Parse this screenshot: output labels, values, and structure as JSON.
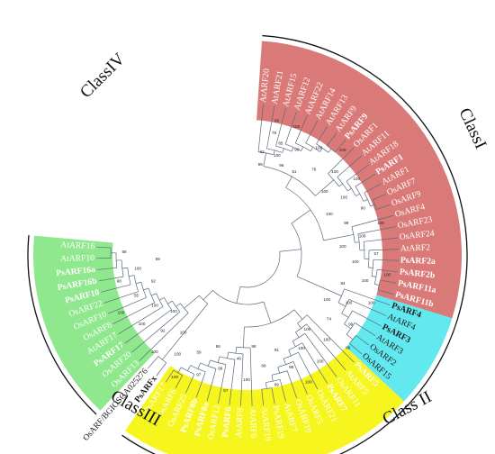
{
  "figure": {
    "center": "275,283",
    "classes": [
      {
        "name": "ClassI",
        "label": "ClassI",
        "color": "#d97a78",
        "text_color": "#ffffff"
      },
      {
        "name": "ClassII",
        "label": "Class II",
        "color": "#62e8ef",
        "text_color": "#1a1a1a"
      },
      {
        "name": "ClassIII",
        "label": "ClassIII",
        "color": "#f6f51e",
        "text_color": "#ffffff"
      },
      {
        "name": "ClassIV",
        "label": "ClassIV",
        "color": "#8fe88d",
        "text_color": "#ffffff"
      }
    ],
    "leaves": [
      {
        "label": "AtARF20",
        "cls": "ClassI",
        "bold": false
      },
      {
        "label": "AtARF21",
        "cls": "ClassI",
        "bold": false
      },
      {
        "label": "AtARF15",
        "cls": "ClassI",
        "bold": false
      },
      {
        "label": "AtARF12",
        "cls": "ClassI",
        "bold": false
      },
      {
        "label": "AtARF22",
        "cls": "ClassI",
        "bold": false
      },
      {
        "label": "AtARF14",
        "cls": "ClassI",
        "bold": false
      },
      {
        "label": "AtARF13",
        "cls": "ClassI",
        "bold": false
      },
      {
        "label": "AtARF9",
        "cls": "ClassI",
        "bold": false
      },
      {
        "label": "PsARF9",
        "cls": "ClassI",
        "bold": true
      },
      {
        "label": "OsARF1",
        "cls": "ClassI",
        "bold": false
      },
      {
        "label": "AtARF11",
        "cls": "ClassI",
        "bold": false
      },
      {
        "label": "AtARF18",
        "cls": "ClassI",
        "bold": false
      },
      {
        "label": "PsARF1",
        "cls": "ClassI",
        "bold": true
      },
      {
        "label": "AtARF1",
        "cls": "ClassI",
        "bold": false
      },
      {
        "label": "OsARF7",
        "cls": "ClassI",
        "bold": false
      },
      {
        "label": "OsARF9",
        "cls": "ClassI",
        "bold": false
      },
      {
        "label": "OsARF4",
        "cls": "ClassI",
        "bold": false
      },
      {
        "label": "OsARF23",
        "cls": "ClassI",
        "bold": false
      },
      {
        "label": "OsARF24",
        "cls": "ClassI",
        "bold": false
      },
      {
        "label": "AtARF2",
        "cls": "ClassI",
        "bold": false
      },
      {
        "label": "PsARF2a",
        "cls": "ClassI",
        "bold": true
      },
      {
        "label": "PsARF2b",
        "cls": "ClassI",
        "bold": true
      },
      {
        "label": "PsARF11a",
        "cls": "ClassI",
        "bold": true
      },
      {
        "label": "PsARF11b",
        "cls": "ClassI",
        "bold": true
      },
      {
        "label": "PsARF4",
        "cls": "ClassII",
        "bold": true
      },
      {
        "label": "AtARF4",
        "cls": "ClassII",
        "bold": false
      },
      {
        "label": "PsARF3",
        "cls": "ClassII",
        "bold": true
      },
      {
        "label": "AtARF3",
        "cls": "ClassII",
        "bold": false
      },
      {
        "label": "OsARF2",
        "cls": "ClassII",
        "bold": false
      },
      {
        "label": "OsARF15",
        "cls": "ClassII",
        "bold": false
      },
      {
        "label": "PsARF5",
        "cls": "ClassIII",
        "bold": true
      },
      {
        "label": "AtARF5",
        "cls": "ClassIII",
        "bold": false
      },
      {
        "label": "OsARF11",
        "cls": "ClassIII",
        "bold": false
      },
      {
        "label": "PsARF7",
        "cls": "ClassIII",
        "bold": true
      },
      {
        "label": "OsARF21",
        "cls": "ClassIII",
        "bold": false
      },
      {
        "label": "OsARF5",
        "cls": "ClassIII",
        "bold": false
      },
      {
        "label": "OsARF19",
        "cls": "ClassIII",
        "bold": false
      },
      {
        "label": "AtARF7",
        "cls": "ClassIII",
        "bold": false
      },
      {
        "label": "PsARF19",
        "cls": "ClassIII",
        "bold": false
      },
      {
        "label": "AtARF19",
        "cls": "ClassIII",
        "bold": false
      },
      {
        "label": "AtARF6",
        "cls": "ClassIII",
        "bold": false
      },
      {
        "label": "AtARF8",
        "cls": "ClassIII",
        "bold": false
      },
      {
        "label": "PsARF6",
        "cls": "ClassIII",
        "bold": true
      },
      {
        "label": "OsARF12",
        "cls": "ClassIII",
        "bold": false
      },
      {
        "label": "PsARF8a",
        "cls": "ClassIII",
        "bold": true
      },
      {
        "label": "PsARF8b",
        "cls": "ClassIII",
        "bold": true
      },
      {
        "label": "OsARF25",
        "cls": "ClassIII",
        "bold": false
      },
      {
        "label": "OsARF6",
        "cls": "ClassIII",
        "bold": false
      },
      {
        "label": "OsARF17",
        "cls": "ClassIII",
        "bold": false
      },
      {
        "label": "PsARFx",
        "cls": "none",
        "bold": true
      },
      {
        "label": "OsARF/BGIOSGA025276",
        "cls": "none",
        "bold": false
      },
      {
        "label": "OsARF13",
        "cls": "ClassIV",
        "bold": false
      },
      {
        "label": "OsARF20",
        "cls": "ClassIV",
        "bold": false
      },
      {
        "label": "PsARF17",
        "cls": "ClassIV",
        "bold": true
      },
      {
        "label": "AtARF17",
        "cls": "ClassIV",
        "bold": false
      },
      {
        "label": "OsARF8",
        "cls": "ClassIV",
        "bold": false
      },
      {
        "label": "OsARF10",
        "cls": "ClassIV",
        "bold": false
      },
      {
        "label": "OsARF22",
        "cls": "ClassIV",
        "bold": false
      },
      {
        "label": "PsARF10",
        "cls": "ClassIV",
        "bold": true
      },
      {
        "label": "PsARF16b",
        "cls": "ClassIV",
        "bold": true
      },
      {
        "label": "PsARF16a",
        "cls": "ClassIV",
        "bold": true
      },
      {
        "label": "AtARF10",
        "cls": "ClassIV",
        "bold": false
      },
      {
        "label": "AtARF16",
        "cls": "ClassIV",
        "bold": false
      }
    ],
    "bootstrap": [
      "99",
      "79",
      "100",
      "100",
      "99",
      "51",
      "100",
      "76",
      "100",
      "100",
      "100",
      "100",
      "100",
      "100",
      "90",
      "99",
      "100",
      "100",
      "100",
      "57",
      "100",
      "100",
      "100",
      "84",
      "100",
      "100",
      "100",
      "99",
      "74",
      "86",
      "100",
      "100",
      "100",
      "100",
      "100",
      "95",
      "91",
      "99",
      "88",
      "98",
      "100",
      "46",
      "57",
      "99",
      "86",
      "97",
      "59",
      "100",
      "100",
      "100",
      "100",
      "92",
      "100",
      "100",
      "100",
      "100",
      "55",
      "92",
      "98",
      "100",
      "59",
      "58",
      "62",
      "90",
      "85",
      "96"
    ]
  }
}
